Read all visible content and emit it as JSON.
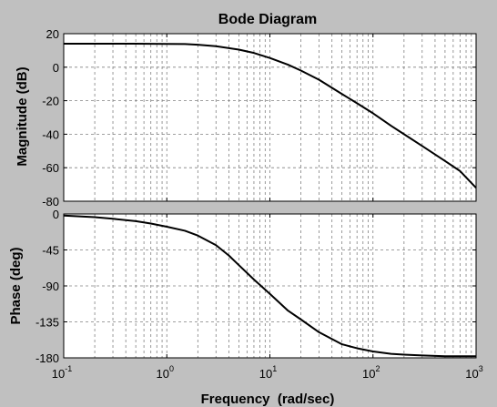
{
  "window": {
    "background": "#c0c0c0",
    "plot_background": "#ffffff",
    "grid_color": "#808080",
    "line_color": "#000000"
  },
  "chart_data": [
    {
      "type": "line",
      "panel": "magnitude",
      "title": "Bode Diagram",
      "xlabel": "",
      "ylabel": "Magnitude (dB)",
      "xscale": "log",
      "xlim": [
        0.1,
        1000
      ],
      "ylim": [
        -80,
        20
      ],
      "yticks": [
        -80,
        -60,
        -40,
        -20,
        0,
        20
      ],
      "grid": true,
      "series": [
        {
          "x": [
            0.1,
            0.2,
            0.5,
            1,
            1.5,
            2,
            3,
            5,
            7,
            10,
            15,
            20,
            30,
            50,
            70,
            100,
            150,
            200,
            300,
            500,
            700,
            1000
          ],
          "values": [
            14,
            14,
            14,
            13.9,
            13.8,
            13.4,
            12.5,
            10.5,
            8.5,
            5.5,
            1.5,
            -2,
            -7.5,
            -16,
            -21.5,
            -27.5,
            -35,
            -40,
            -47,
            -56,
            -62,
            -72
          ]
        }
      ]
    },
    {
      "type": "line",
      "panel": "phase",
      "title": "",
      "xlabel": "Frequency  (rad/sec)",
      "ylabel": "Phase (deg)",
      "xscale": "log",
      "xlim": [
        0.1,
        1000
      ],
      "ylim": [
        -180,
        0
      ],
      "yticks": [
        -180,
        -135,
        -90,
        -45,
        0
      ],
      "xticks": [
        {
          "base": "10",
          "exp": "-1"
        },
        {
          "base": "10",
          "exp": "0"
        },
        {
          "base": "10",
          "exp": "1"
        },
        {
          "base": "10",
          "exp": "2"
        },
        {
          "base": "10",
          "exp": "3"
        }
      ],
      "grid": true,
      "series": [
        {
          "x": [
            0.1,
            0.2,
            0.3,
            0.5,
            0.7,
            1,
            1.5,
            2,
            3,
            4,
            5,
            7,
            10,
            15,
            20,
            30,
            50,
            70,
            100,
            150,
            200,
            300,
            500,
            1000
          ],
          "values": [
            -2,
            -4,
            -6,
            -9,
            -12,
            -16,
            -21,
            -27,
            -39,
            -52,
            -64,
            -82,
            -100,
            -121,
            -132,
            -148,
            -163,
            -168,
            -172,
            -175,
            -176,
            -177,
            -178,
            -178
          ]
        }
      ]
    }
  ]
}
